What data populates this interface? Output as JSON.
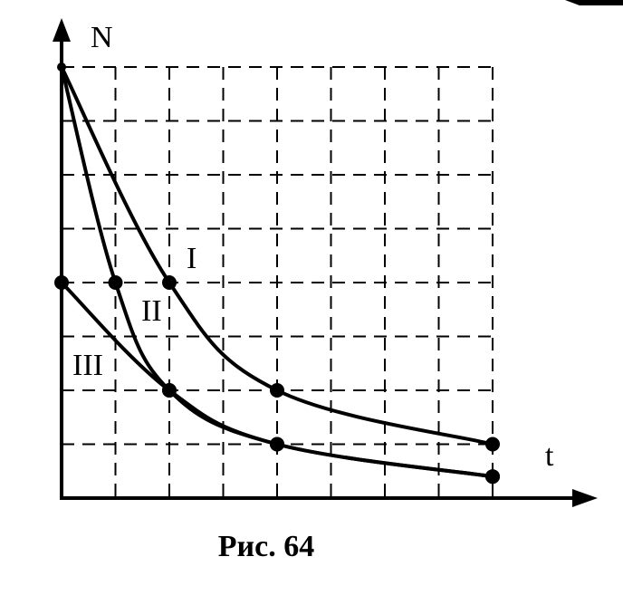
{
  "chart_data": {
    "type": "line",
    "xlabel": "t",
    "ylabel": "N",
    "caption": "Рис. 64",
    "xlim": [
      0,
      8
    ],
    "ylim": [
      0,
      8
    ],
    "grid": true,
    "series": [
      {
        "name": "I",
        "points": [
          [
            0,
            8
          ],
          [
            2,
            4
          ],
          [
            4,
            2
          ],
          [
            8,
            1
          ]
        ],
        "markers": [
          [
            2,
            4
          ],
          [
            4,
            2
          ],
          [
            8,
            1
          ]
        ]
      },
      {
        "name": "II",
        "points": [
          [
            0,
            8
          ],
          [
            1,
            4
          ],
          [
            2,
            2
          ],
          [
            4,
            1
          ],
          [
            8,
            0.4
          ]
        ],
        "markers": [
          [
            1,
            4
          ],
          [
            2,
            2
          ],
          [
            4,
            1
          ],
          [
            8,
            0.4
          ]
        ]
      },
      {
        "name": "III",
        "points": [
          [
            0,
            4
          ],
          [
            2,
            2
          ],
          [
            4,
            1
          ],
          [
            8,
            0.4
          ]
        ],
        "markers": [
          [
            0,
            4
          ],
          [
            2,
            2
          ],
          [
            4,
            1
          ],
          [
            8,
            0.4
          ]
        ]
      }
    ]
  }
}
